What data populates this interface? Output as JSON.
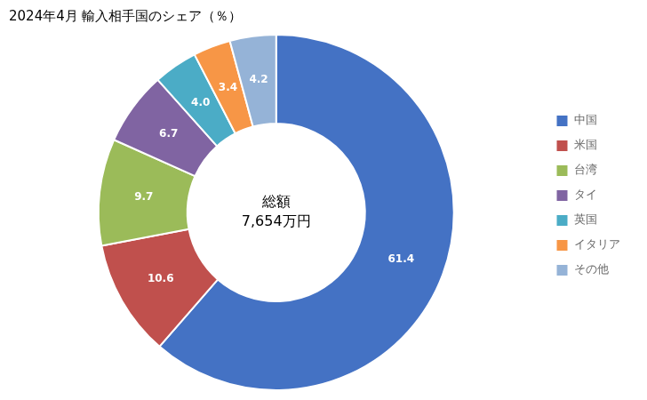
{
  "chart_data": {
    "type": "doughnut",
    "title": "2024年4月 輸入相手国のシェア（％）",
    "annotations": [
      "総額",
      "7,654万円"
    ],
    "categories": [
      "中国",
      "米国",
      "台湾",
      "タイ",
      "英国",
      "イタリア",
      "その他"
    ],
    "values": [
      61.4,
      10.6,
      9.7,
      6.7,
      4.0,
      3.4,
      4.2
    ],
    "value_labels": [
      "61.4",
      "10.6",
      "9.7",
      "6.7",
      "4.0",
      "3.4",
      "4.2"
    ],
    "colors": [
      "#4472C4",
      "#C0504D",
      "#9BBB59",
      "#8064A2",
      "#4BACC6",
      "#F79646",
      "#95B3D7"
    ],
    "data_labels": true,
    "legend": "right"
  }
}
